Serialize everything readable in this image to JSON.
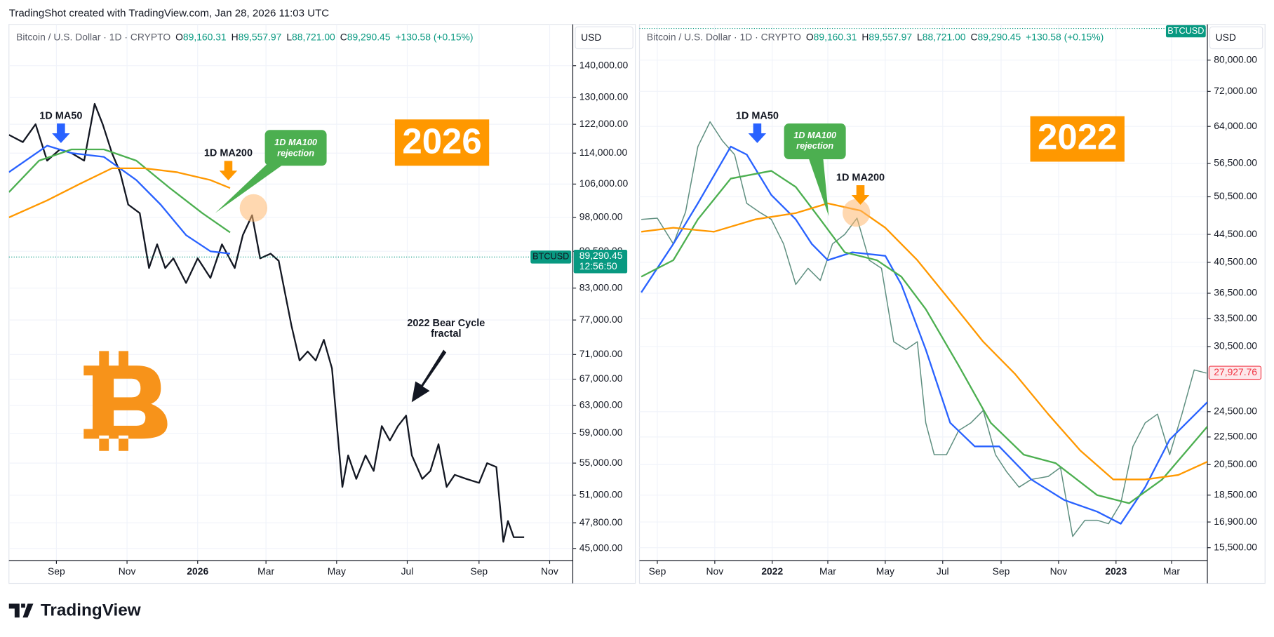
{
  "header": {
    "caption": "TradingShot created with TradingView.com, Jan 28, 2026 11:03 UTC",
    "brand": "TradingView"
  },
  "chart_data": [
    {
      "type": "line",
      "title": "Bitcoin / U.S. Dollar · 1D · CRYPTO",
      "ohlc": [
        {
          "key": "O",
          "text": "89,160.31"
        },
        {
          "key": "H",
          "text": "89,557.97"
        },
        {
          "key": "L",
          "text": "88,721.00"
        },
        {
          "key": "C",
          "text": "89,290.45"
        }
      ],
      "change": "+130.58 (+0.15%)",
      "currency": "USD",
      "symbol": "BTCUSD",
      "last_price": {
        "value": 89290.45,
        "label": "89,290.45"
      },
      "countdown": "12:56:50",
      "log_scale": true,
      "grid": true,
      "xlim": [
        -41,
        446
      ],
      "xticks": [
        {
          "value": 0,
          "label": "Sep"
        },
        {
          "value": 61,
          "label": "Nov"
        },
        {
          "value": 122,
          "label": "2026"
        },
        {
          "value": 181,
          "label": "Mar"
        },
        {
          "value": 242,
          "label": "May"
        },
        {
          "value": 303,
          "label": "Jul"
        },
        {
          "value": 365,
          "label": "Sep"
        },
        {
          "value": 426,
          "label": "Nov"
        }
      ],
      "ylim": [
        43730,
        154300
      ],
      "yticks": [
        {
          "value": 140000,
          "label": "140,000.00"
        },
        {
          "value": 130000,
          "label": "130,000.00"
        },
        {
          "value": 122000,
          "label": "122,000.00"
        },
        {
          "value": 114000,
          "label": "114,000.00"
        },
        {
          "value": 106000,
          "label": "106,000.00"
        },
        {
          "value": 98000,
          "label": "98,000.00"
        },
        {
          "value": 90500,
          "label": "90,500.00"
        },
        {
          "value": 83000,
          "label": "83,000.00"
        },
        {
          "value": 77000,
          "label": "77,000.00"
        },
        {
          "value": 71000,
          "label": "71,000.00"
        },
        {
          "value": 67000,
          "label": "67,000.00"
        },
        {
          "value": 63000,
          "label": "63,000.00"
        },
        {
          "value": 59000,
          "label": "59,000.00"
        },
        {
          "value": 55000,
          "label": "55,000.00"
        },
        {
          "value": 51000,
          "label": "51,000.00"
        },
        {
          "value": 47800,
          "label": "47,800.00"
        },
        {
          "value": 45000,
          "label": "45,000.00"
        }
      ],
      "series": [
        {
          "color": "#131722",
          "width": 2,
          "x": [
            -41,
            -29,
            -18,
            -8,
            3,
            13,
            24,
            33,
            40,
            48,
            55,
            62,
            72,
            80,
            87,
            94,
            101,
            112,
            122,
            133,
            143,
            154,
            161,
            169,
            176,
            185,
            192,
            203,
            210,
            217,
            224,
            231,
            238,
            244,
            247,
            252,
            259,
            267,
            274,
            281,
            288,
            295,
            302,
            307,
            316,
            323,
            330,
            337,
            344,
            354,
            365,
            372,
            380,
            386,
            390,
            395,
            404
          ],
          "values": [
            119000,
            117000,
            122000,
            112000,
            115000,
            114000,
            112000,
            128000,
            122000,
            114000,
            109000,
            101000,
            99000,
            87000,
            92000,
            87000,
            89000,
            84000,
            89000,
            85000,
            92000,
            87000,
            94000,
            98500,
            89000,
            90000,
            88500,
            76000,
            70000,
            71500,
            70000,
            73500,
            68700,
            57000,
            52000,
            56000,
            53000,
            56000,
            54000,
            60000,
            58000,
            60000,
            61500,
            56000,
            53000,
            54000,
            57500,
            52000,
            53500,
            53000,
            52500,
            55000,
            54500,
            45700,
            48000,
            46200,
            46200
          ]
        },
        {
          "color": "#2962ff",
          "width": 2,
          "x": [
            -41,
            -8,
            13,
            41,
            69,
            90,
            112,
            133,
            150
          ],
          "values": [
            109000,
            116000,
            114000,
            113000,
            107000,
            101000,
            94000,
            90500,
            90000
          ]
        },
        {
          "color": "#4caf50",
          "width": 2,
          "x": [
            -41,
            -15,
            13,
            41,
            69,
            98,
            126,
            150
          ],
          "values": [
            104000,
            112000,
            115000,
            115000,
            112000,
            105000,
            99000,
            94600
          ]
        },
        {
          "color": "#ff9800",
          "width": 2,
          "x": [
            -41,
            -8,
            20,
            48,
            76,
            104,
            133,
            150
          ],
          "values": [
            98000,
            102000,
            106000,
            110000,
            110000,
            109000,
            107000,
            105000
          ]
        }
      ],
      "annotations": [
        "1D MA50",
        "1D MA200",
        "1D MA100",
        "rejection",
        "2026",
        "2022 Bear Cycle",
        "fractal"
      ]
    },
    {
      "type": "line",
      "title": "Bitcoin / U.S. Dollar · 1D · CRYPTO",
      "ohlc": [
        {
          "key": "O",
          "text": "89,160.31"
        },
        {
          "key": "H",
          "text": "89,557.97"
        },
        {
          "key": "L",
          "text": "88,721.00"
        },
        {
          "key": "C",
          "text": "89,290.45"
        }
      ],
      "change": "+130.58 (+0.15%)",
      "currency": "USD",
      "symbol": "BTCUSD",
      "last_price": {
        "value": 27927.76,
        "label": "27,927.76"
      },
      "log_scale": true,
      "grid": true,
      "xlim": [
        -19,
        584
      ],
      "xticks": [
        {
          "value": 0,
          "label": "Sep"
        },
        {
          "value": 61,
          "label": "Nov"
        },
        {
          "value": 122,
          "label": "2022"
        },
        {
          "value": 181,
          "label": "Mar"
        },
        {
          "value": 242,
          "label": "May"
        },
        {
          "value": 303,
          "label": "Jul"
        },
        {
          "value": 365,
          "label": "Sep"
        },
        {
          "value": 426,
          "label": "Nov"
        },
        {
          "value": 487,
          "label": "2023"
        },
        {
          "value": 546,
          "label": "Mar"
        }
      ],
      "ylim": [
        14840,
        90230
      ],
      "yticks": [
        {
          "value": 80000,
          "label": "80,000.00"
        },
        {
          "value": 72000,
          "label": "72,000.00"
        },
        {
          "value": 64000,
          "label": "64,000.00"
        },
        {
          "value": 56500,
          "label": "56,500.00"
        },
        {
          "value": 50500,
          "label": "50,500.00"
        },
        {
          "value": 44500,
          "label": "44,500.00"
        },
        {
          "value": 40500,
          "label": "40,500.00"
        },
        {
          "value": 36500,
          "label": "36,500.00"
        },
        {
          "value": 33500,
          "label": "33,500.00"
        },
        {
          "value": 30500,
          "label": "30,500.00"
        },
        {
          "value": 24500,
          "label": "24,500.00"
        },
        {
          "value": 22500,
          "label": "22,500.00"
        },
        {
          "value": 20500,
          "label": "20,500.00"
        },
        {
          "value": 18500,
          "label": "18,500.00"
        },
        {
          "value": 16900,
          "label": "16,900.00"
        },
        {
          "value": 15500,
          "label": "15,500.00"
        }
      ],
      "series": [
        {
          "color": "#5f8f80",
          "width": 1.3,
          "x": [
            -17,
            0,
            17,
            30,
            43,
            56,
            69,
            82,
            95,
            108,
            121,
            134,
            147,
            160,
            173,
            186,
            199,
            212,
            225,
            238,
            251,
            264,
            276,
            285,
            294,
            307,
            320,
            333,
            346,
            359,
            371,
            384,
            397,
            415,
            428,
            441,
            454,
            467,
            479,
            492,
            505,
            518,
            531,
            544,
            557,
            570,
            583
          ],
          "values": [
            46800,
            47000,
            43100,
            48000,
            59800,
            65000,
            61000,
            58200,
            49400,
            48000,
            46800,
            43100,
            37600,
            39700,
            38100,
            43100,
            44500,
            47000,
            40800,
            39700,
            31000,
            30200,
            31000,
            23600,
            21200,
            21200,
            23000,
            23600,
            24600,
            21200,
            20000,
            19000,
            19500,
            19700,
            20300,
            16100,
            17000,
            17000,
            16800,
            18000,
            21800,
            23600,
            24300,
            21200,
            24300,
            28200,
            27900
          ]
        },
        {
          "color": "#2962ff",
          "width": 2,
          "x": [
            -17,
            17,
            43,
            78,
            95,
            121,
            147,
            164,
            181,
            207,
            242,
            259,
            285,
            311,
            337,
            363,
            397,
            432,
            467,
            492,
            518,
            544,
            584
          ],
          "values": [
            36600,
            43100,
            49400,
            59800,
            58200,
            50800,
            46800,
            43100,
            40800,
            41900,
            41400,
            37600,
            30200,
            23600,
            21800,
            21800,
            19500,
            18200,
            17500,
            16800,
            19000,
            22300,
            25300
          ]
        },
        {
          "color": "#4caf50",
          "width": 2,
          "x": [
            -17,
            17,
            43,
            78,
            121,
            147,
            173,
            199,
            233,
            259,
            285,
            320,
            354,
            389,
            423,
            467,
            501,
            536,
            584
          ],
          "values": [
            38600,
            40800,
            46800,
            53700,
            55100,
            52200,
            46800,
            41900,
            40800,
            38600,
            34600,
            28600,
            23600,
            21200,
            20600,
            18500,
            18000,
            19500,
            23300
          ]
        },
        {
          "color": "#ff9800",
          "width": 2,
          "x": [
            -17,
            17,
            60,
            104,
            147,
            181,
            216,
            242,
            276,
            311,
            346,
            380,
            415,
            449,
            484,
            518,
            553,
            584
          ],
          "values": [
            44900,
            45500,
            44900,
            46800,
            47800,
            49400,
            48200,
            45500,
            40800,
            35600,
            31000,
            27800,
            24300,
            21500,
            19500,
            19500,
            19800,
            20700
          ]
        }
      ],
      "annotations": [
        "1D MA50",
        "1D MA100",
        "rejection",
        "1D MA200",
        "2022"
      ]
    }
  ]
}
